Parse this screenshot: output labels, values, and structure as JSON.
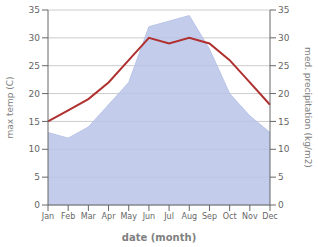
{
  "chart_data": {
    "type": "line",
    "xlabel": "date (month)",
    "ylabel": "max temp (C)",
    "y2label": "med. precipitation (kg/m2)",
    "categories": [
      "Jan",
      "Feb",
      "Mar",
      "Apr",
      "May",
      "Jun",
      "Jul",
      "Aug",
      "Sep",
      "Oct",
      "Nov",
      "Dec"
    ],
    "series": [
      {
        "type": "area",
        "axis": "y2",
        "color": "#b8c4e8",
        "values": [
          13,
          12,
          14,
          18,
          22,
          32,
          33,
          34,
          28,
          20,
          16,
          13
        ]
      },
      {
        "type": "line",
        "color": "#b03030",
        "values": [
          15,
          17,
          19,
          22,
          26,
          30,
          29,
          30,
          29,
          26,
          22,
          18
        ]
      }
    ],
    "ylim": [
      0,
      35
    ],
    "yticks": [
      0,
      5,
      10,
      15,
      20,
      25,
      30,
      35
    ],
    "y2lim": [
      0,
      35
    ],
    "y2ticks": [
      0,
      5,
      10,
      15,
      20,
      25,
      30,
      35
    ],
    "grid": true
  }
}
